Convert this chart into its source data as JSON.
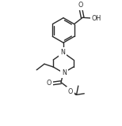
{
  "bg_color": "#ffffff",
  "line_color": "#2a2a2a",
  "lw": 1.0,
  "fs": 5.8,
  "fig_w": 1.54,
  "fig_h": 1.6,
  "dpi": 100,
  "xlim": [
    0.0,
    10.0
  ],
  "ylim": [
    0.0,
    10.4
  ]
}
